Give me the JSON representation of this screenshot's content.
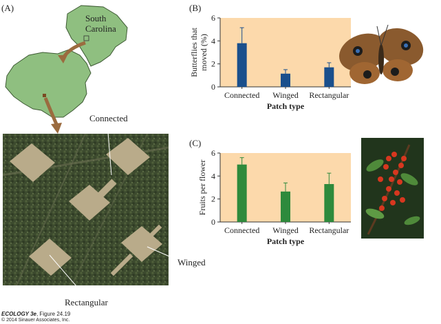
{
  "panels": {
    "a": "(A)",
    "b": "(B)",
    "c": "(C)"
  },
  "map": {
    "state_label_line1": "South",
    "state_label_line2": "Carolina"
  },
  "aerial": {
    "connected_label": "Connected",
    "winged_label": "Winged",
    "rectangular_label": "Rectangular"
  },
  "credit": {
    "line1_italic": "ECOLOGY 3e",
    "line1_rest": ", Figure 24.19",
    "line2": "© 2014 Sinauer Associates, Inc."
  },
  "photos": {
    "b_icon": "butterfly-photo",
    "c_icon": "berry-branch-photo"
  },
  "colors": {
    "chart_bg": "#fcd9ab",
    "bar_b": "#1a4f8c",
    "bar_c": "#2e8a3c",
    "map_land": "#8fbf80"
  },
  "chart_data": [
    {
      "type": "bar",
      "panel": "B",
      "categories": [
        "Connected",
        "Winged",
        "Rectangular"
      ],
      "values": [
        3.8,
        1.15,
        1.7
      ],
      "errors": [
        1.35,
        0.35,
        0.4
      ],
      "xlabel": "Patch type",
      "ylabel": "Butterflies that moved (%)",
      "ylabel_line1": "Butterflies that",
      "ylabel_line2": "moved (%)",
      "ylim": [
        0,
        6
      ],
      "yticks": [
        0,
        2,
        4,
        6
      ],
      "grid": false
    },
    {
      "type": "bar",
      "panel": "C",
      "categories": [
        "Connected",
        "Winged",
        "Rectangular"
      ],
      "values": [
        5.0,
        2.65,
        3.3
      ],
      "errors": [
        0.6,
        0.75,
        0.95
      ],
      "xlabel": "Patch type",
      "ylabel": "Fruits per flower",
      "ylim": [
        0,
        6
      ],
      "yticks": [
        0,
        2,
        4,
        6
      ],
      "grid": false
    }
  ]
}
